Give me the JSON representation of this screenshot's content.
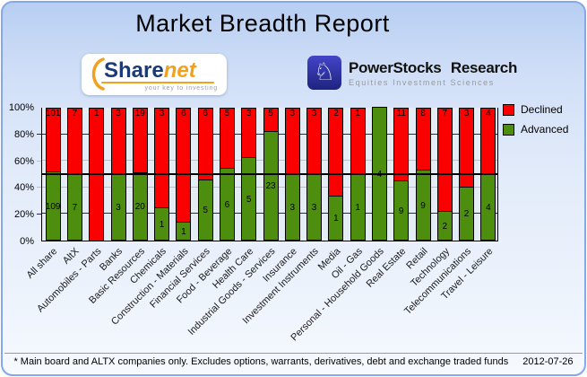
{
  "title": "Market Breadth Report",
  "logos": {
    "sharenet": {
      "part1": "Share",
      "part2": "net",
      "tagline": "your key to investing",
      "navy": "#1c3a78",
      "orange": "#f0a21e"
    },
    "powerstocks": {
      "name": "PowerStocks Research",
      "tagline": "Equities Investment Sciences",
      "knight_glyph": "♘",
      "indigo": "#2a2f9e"
    }
  },
  "chart_data": {
    "type": "bar",
    "stacked": true,
    "normalized_to_percent": true,
    "legend_position": "right",
    "y_axis": {
      "min": 0,
      "max": 100,
      "ticks": [
        "0%",
        "20%",
        "40%",
        "60%",
        "80%",
        "100%"
      ],
      "reference_line": 50
    },
    "categories": [
      "All share",
      "AltX",
      "Automobiles - Parts",
      "Banks",
      "Basic Resources",
      "Chemicals",
      "Construction - Materials",
      "Financial Services",
      "Food - Beverage",
      "Health Care",
      "Industrial Goods - Services",
      "Insurance",
      "Investment Instruments",
      "Media",
      "Oil - Gas",
      "Personal - Household Goods",
      "Real Estate",
      "Retail",
      "Technology",
      "Telecommunications",
      "Travel - Leisure"
    ],
    "series": [
      {
        "name": "Declined",
        "color": "#fb0000",
        "values": [
          101,
          7,
          1,
          3,
          19,
          3,
          6,
          6,
          5,
          3,
          5,
          3,
          3,
          2,
          1,
          0,
          11,
          8,
          7,
          3,
          4
        ]
      },
      {
        "name": "Advanced",
        "color": "#4e8e0e",
        "values": [
          109,
          7,
          0,
          3,
          20,
          1,
          1,
          5,
          6,
          5,
          23,
          3,
          3,
          1,
          1,
          4,
          9,
          9,
          2,
          2,
          4
        ]
      }
    ]
  },
  "legend": {
    "declined": "Declined",
    "advanced": "Advanced"
  },
  "footer": {
    "note": "* Main board and ALTX companies only. Excludes options, warrants, derivatives, debt and exchange traded funds",
    "date": "2012-07-26"
  }
}
